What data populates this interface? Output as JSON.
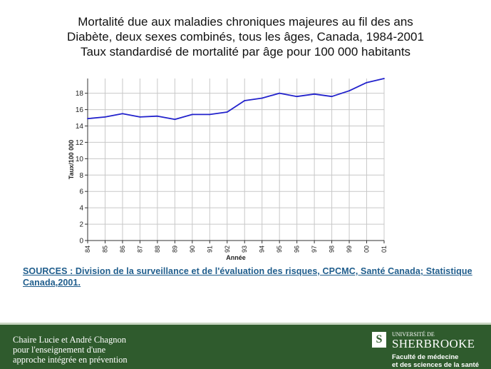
{
  "title_lines": [
    "Mortalité due aux maladies chroniques majeures au fil des ans",
    "Diabète, deux sexes combinés, tous les âges, Canada, 1984-2001",
    "Taux standardisé de mortalité par âge pour 100 000 habitants"
  ],
  "sources": "SOURCES : Division de la surveillance et de l'évaluation des risques, CPCMC, Santé Canada; Statistique Canada,2001.",
  "footer": {
    "chaire_lines": [
      "Chaire Lucie et André Chagnon",
      "pour l'enseignement d'une",
      "approche intégrée en prévention"
    ],
    "university_label": "UNIVERSITÉ DE",
    "university_name": "SHERBROOKE",
    "logo_letter": "S",
    "faculty_lines": [
      "Faculté de médecine",
      "et des sciences de la santé"
    ],
    "footer_color": "#2f5b2d"
  },
  "chart_data": {
    "type": "line",
    "title": "",
    "xlabel": "Année",
    "ylabel": "Taux/100 000",
    "categories": [
      "84",
      "85",
      "86",
      "87",
      "88",
      "89",
      "90",
      "91",
      "92",
      "93",
      "94",
      "95",
      "96",
      "97",
      "98",
      "99",
      "00",
      "01"
    ],
    "series": [
      {
        "values": [
          14.9,
          15.1,
          15.5,
          15.1,
          15.2,
          14.8,
          15.4,
          15.4,
          15.7,
          17.1,
          17.4,
          18.0,
          17.6,
          17.9,
          17.6,
          18.3,
          19.3,
          19.8
        ]
      }
    ],
    "yticks": [
      0,
      2,
      4,
      6,
      8,
      10,
      12,
      14,
      16,
      18
    ],
    "ylim": [
      0,
      19.8
    ],
    "grid": true,
    "line_color": "#2222cc"
  }
}
